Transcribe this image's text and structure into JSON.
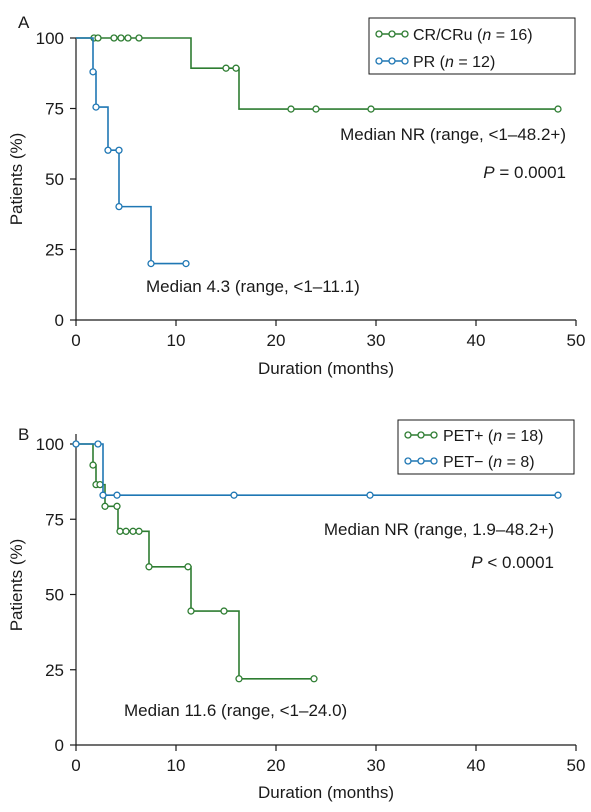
{
  "chart_data": [
    {
      "type": "line",
      "step": true,
      "panel_label": "A",
      "xlabel": "Duration (months)",
      "ylabel": "Patients (%)",
      "xlim": [
        0,
        50
      ],
      "ylim": [
        0,
        100
      ],
      "x_ticks": [
        0,
        10,
        20,
        30,
        40,
        50
      ],
      "y_ticks": [
        0,
        25,
        50,
        75,
        100
      ],
      "legend_position": "top-right",
      "series": [
        {
          "name_parts": [
            "CR/CRu (",
            "n",
            " = 16)"
          ],
          "color": "#2e7d32",
          "steps": [
            [
              0,
              100
            ],
            [
              11.5,
              89.3
            ],
            [
              16.3,
              74.8
            ],
            [
              48.2,
              74.8
            ]
          ],
          "censored": [
            [
              1.8,
              100
            ],
            [
              2.2,
              100
            ],
            [
              3.8,
              100
            ],
            [
              4.5,
              100
            ],
            [
              5.2,
              100
            ],
            [
              6.3,
              100
            ],
            [
              15,
              89.3
            ],
            [
              16,
              89.3
            ],
            [
              21.5,
              74.8
            ],
            [
              24,
              74.8
            ],
            [
              29.5,
              74.8
            ],
            [
              48.2,
              74.8
            ]
          ]
        },
        {
          "name_parts": [
            "PR (",
            "n",
            " = 12)"
          ],
          "color": "#1f77b4",
          "steps": [
            [
              0,
              100
            ],
            [
              1.7,
              88
            ],
            [
              2,
              75.5
            ],
            [
              3.2,
              60.2
            ],
            [
              4.3,
              40.2
            ],
            [
              7.5,
              20
            ],
            [
              11,
              20
            ]
          ],
          "censored": [
            [
              1.7,
              88
            ],
            [
              2,
              75.5
            ],
            [
              3.2,
              60.2
            ],
            [
              4.3,
              60.2
            ],
            [
              4.3,
              40.2
            ],
            [
              7.5,
              20
            ],
            [
              11,
              20
            ]
          ]
        }
      ],
      "annotations": {
        "median_1": "Median NR (range, <1–48.2+)",
        "pvalue_prefix": "P",
        "pvalue_rest": " = 0.0001",
        "median_2": "Median 4.3 (range, <1–11.1)"
      }
    },
    {
      "type": "line",
      "step": true,
      "panel_label": "B",
      "xlabel": "Duration (months)",
      "ylabel": "Patients (%)",
      "xlim": [
        0,
        50
      ],
      "ylim": [
        0,
        100
      ],
      "x_ticks": [
        0,
        10,
        20,
        30,
        40,
        50
      ],
      "y_ticks": [
        0,
        25,
        50,
        75,
        100
      ],
      "legend_position": "top-right",
      "series": [
        {
          "name_parts": [
            "PET+ (",
            "n",
            " = 18)"
          ],
          "color": "#2e7d32",
          "steps": [
            [
              0,
              100
            ],
            [
              1.7,
              93
            ],
            [
              2,
              86.5
            ],
            [
              2.9,
              79.3
            ],
            [
              4.2,
              71
            ],
            [
              7.3,
              59.2
            ],
            [
              11.5,
              44.5
            ],
            [
              16.3,
              22
            ],
            [
              23.8,
              22
            ]
          ],
          "censored": [
            [
              1.7,
              93
            ],
            [
              2,
              86.5
            ],
            [
              2.4,
              86.5
            ],
            [
              2.9,
              79.3
            ],
            [
              4.1,
              79.3
            ],
            [
              4.4,
              71
            ],
            [
              5,
              71
            ],
            [
              5.7,
              71
            ],
            [
              6.3,
              71
            ],
            [
              7.3,
              59.2
            ],
            [
              11.2,
              59.2
            ],
            [
              11.5,
              44.5
            ],
            [
              14.8,
              44.5
            ],
            [
              16.3,
              22
            ],
            [
              23.8,
              22
            ]
          ]
        },
        {
          "name_parts": [
            "PET− (",
            "n",
            " = 8)"
          ],
          "color": "#1f77b4",
          "steps": [
            [
              0,
              100
            ],
            [
              2.7,
              83
            ],
            [
              48.2,
              83
            ]
          ],
          "censored": [
            [
              0,
              100
            ],
            [
              2.2,
              100
            ],
            [
              2.7,
              83
            ],
            [
              4.1,
              83
            ],
            [
              15.8,
              83
            ],
            [
              29.4,
              83
            ],
            [
              48.2,
              83
            ]
          ]
        }
      ],
      "annotations": {
        "median_1": "Median NR (range, 1.9–48.2+)",
        "pvalue_prefix": "P",
        "pvalue_rest": " < 0.0001",
        "median_2": "Median 11.6 (range, <1–24.0)"
      }
    }
  ]
}
